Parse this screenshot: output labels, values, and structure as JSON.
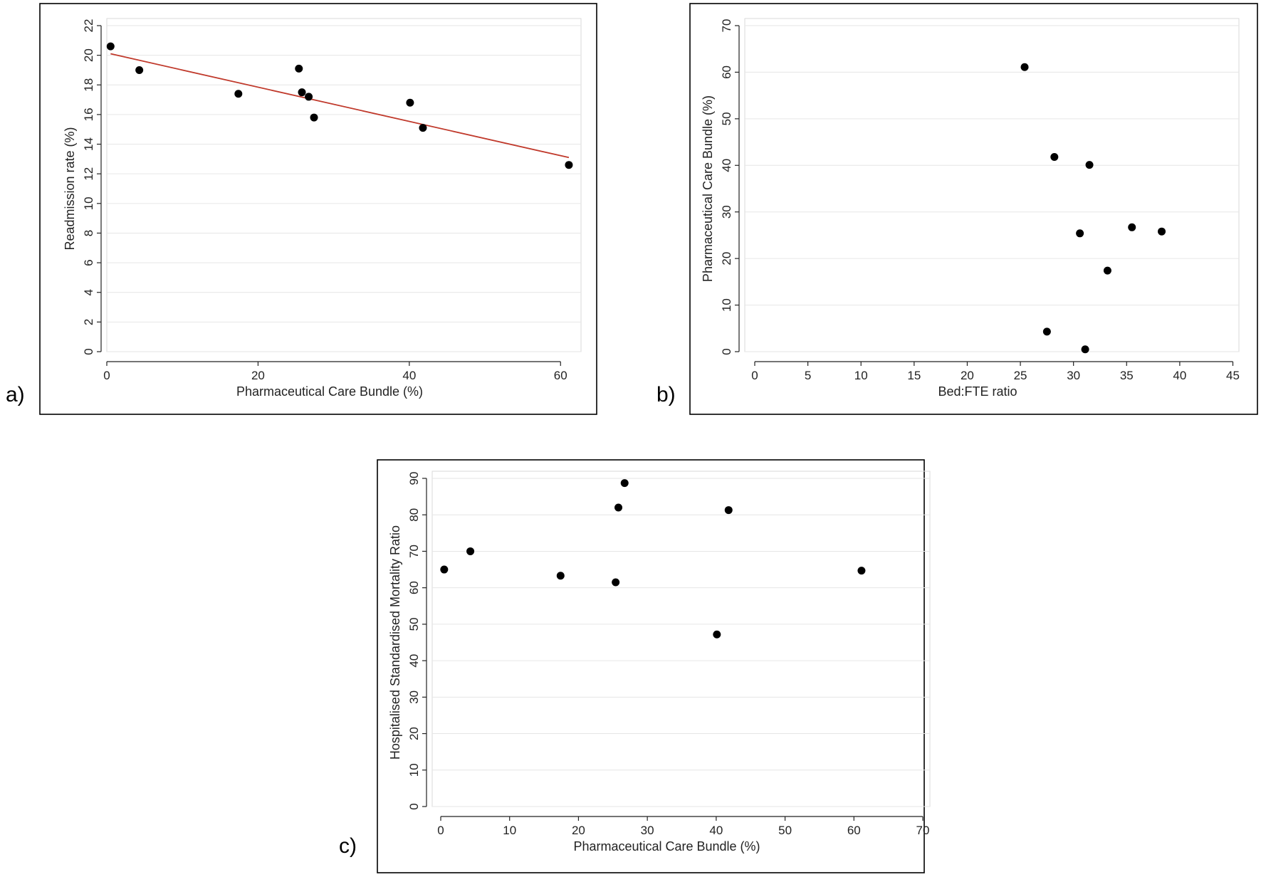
{
  "panel_labels": [
    "a)",
    "b)",
    "c)"
  ],
  "chart_data": [
    {
      "type": "scatter",
      "panel_label": "a)",
      "title": "",
      "xlabel": "Pharmaceutical Care Bundle (%)",
      "ylabel": "Readmission rate (%)",
      "xlim": [
        0,
        62
      ],
      "ylim": [
        0,
        22
      ],
      "xticks": [
        0,
        20,
        40,
        60
      ],
      "yticks": [
        0,
        2,
        4,
        6,
        8,
        10,
        12,
        14,
        16,
        18,
        20,
        22
      ],
      "grid": "horizontal",
      "points": [
        {
          "x": 0.5,
          "y": 20.6
        },
        {
          "x": 4.3,
          "y": 19.0
        },
        {
          "x": 17.4,
          "y": 17.4
        },
        {
          "x": 25.4,
          "y": 19.1
        },
        {
          "x": 25.8,
          "y": 17.5
        },
        {
          "x": 26.7,
          "y": 17.2
        },
        {
          "x": 27.4,
          "y": 15.8
        },
        {
          "x": 40.1,
          "y": 16.8
        },
        {
          "x": 41.8,
          "y": 15.1
        },
        {
          "x": 61.1,
          "y": 12.6
        }
      ],
      "fit_line": {
        "x": [
          0.5,
          61.1
        ],
        "y": [
          20.1,
          13.1
        ],
        "color": "#c0392b"
      },
      "marker_color": "#000000"
    },
    {
      "type": "scatter",
      "panel_label": "b)",
      "title": "",
      "xlabel": "Bed:FTE ratio",
      "ylabel": "Pharmaceutical Care Bundle (%)",
      "xlim": [
        0,
        45
      ],
      "ylim": [
        0,
        70
      ],
      "xticks": [
        0,
        5,
        10,
        15,
        20,
        25,
        30,
        35,
        40,
        45
      ],
      "yticks": [
        0,
        10,
        20,
        30,
        40,
        50,
        60,
        70
      ],
      "grid": "horizontal",
      "points": [
        {
          "x": 25.4,
          "y": 61.1
        },
        {
          "x": 28.2,
          "y": 41.8
        },
        {
          "x": 31.5,
          "y": 40.1
        },
        {
          "x": 30.6,
          "y": 25.4
        },
        {
          "x": 35.5,
          "y": 26.7
        },
        {
          "x": 38.3,
          "y": 25.8
        },
        {
          "x": 33.2,
          "y": 17.4
        },
        {
          "x": 27.5,
          "y": 4.3
        },
        {
          "x": 31.1,
          "y": 0.5
        }
      ],
      "marker_color": "#000000"
    },
    {
      "type": "scatter",
      "panel_label": "c)",
      "title": "",
      "xlabel": "Pharmaceutical Care Bundle (%)",
      "ylabel": "Hospitalised Standardised Mortality Ratio",
      "xlim": [
        0,
        70
      ],
      "ylim": [
        0,
        90
      ],
      "xticks": [
        0,
        10,
        20,
        30,
        40,
        50,
        60,
        70
      ],
      "yticks": [
        0,
        10,
        20,
        30,
        40,
        50,
        60,
        70,
        80,
        90
      ],
      "grid": "horizontal",
      "points": [
        {
          "x": 0.5,
          "y": 65.0
        },
        {
          "x": 4.3,
          "y": 70.0
        },
        {
          "x": 17.4,
          "y": 63.3
        },
        {
          "x": 25.4,
          "y": 61.5
        },
        {
          "x": 25.8,
          "y": 82.0
        },
        {
          "x": 26.7,
          "y": 88.7
        },
        {
          "x": 40.1,
          "y": 47.2
        },
        {
          "x": 41.8,
          "y": 81.3
        },
        {
          "x": 61.1,
          "y": 64.7
        }
      ],
      "marker_color": "#000000"
    }
  ]
}
